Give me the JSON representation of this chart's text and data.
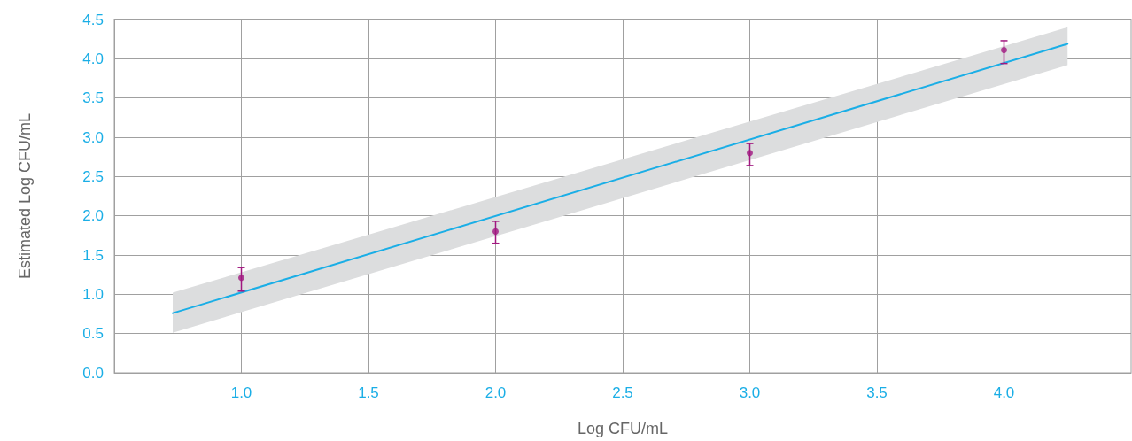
{
  "chart_data": {
    "type": "scatter",
    "xlabel": "Log CFU/mL",
    "ylabel": "Estimated Log CFU/mL",
    "xlim": [
      0.5,
      4.5
    ],
    "ylim": [
      0,
      4.5
    ],
    "xticks": [
      {
        "value": 1,
        "label": "1.0"
      },
      {
        "value": 1.5,
        "label": "1.5"
      },
      {
        "value": 2,
        "label": "2.0"
      },
      {
        "value": 2.5,
        "label": "2.5"
      },
      {
        "value": 3,
        "label": "3.0"
      },
      {
        "value": 3.5,
        "label": "3.5"
      },
      {
        "value": 4,
        "label": "4.0"
      }
    ],
    "yticks": [
      {
        "value": 0,
        "label": "0.0"
      },
      {
        "value": 0.5,
        "label": "0.5"
      },
      {
        "value": 1,
        "label": "1.0"
      },
      {
        "value": 1.5,
        "label": "1.5"
      },
      {
        "value": 2,
        "label": "2.0"
      },
      {
        "value": 2.5,
        "label": "2.5"
      },
      {
        "value": 3,
        "label": "3.0"
      },
      {
        "value": 3.5,
        "label": "3.5"
      },
      {
        "value": 4,
        "label": "4.0"
      },
      {
        "value": 4.5,
        "label": "4.5"
      }
    ],
    "grid": true,
    "marker": "circle",
    "series": [
      {
        "type": "line",
        "marker": "none",
        "color": "#1aaee6",
        "x": [
          0.73,
          4.25
        ],
        "values": [
          0.76,
          4.19
        ],
        "lower": [
          0.51,
          3.92
        ],
        "upper": [
          1.02,
          4.4
        ]
      },
      {
        "color": "#a0177f",
        "x": [
          1,
          2,
          3,
          4
        ],
        "values": [
          1.21,
          1.8,
          2.8,
          4.11
        ],
        "errors": [
          [
            1.04,
            1.34
          ],
          [
            1.65,
            1.93
          ],
          [
            2.64,
            2.92
          ],
          [
            3.94,
            4.23
          ]
        ]
      }
    ]
  }
}
